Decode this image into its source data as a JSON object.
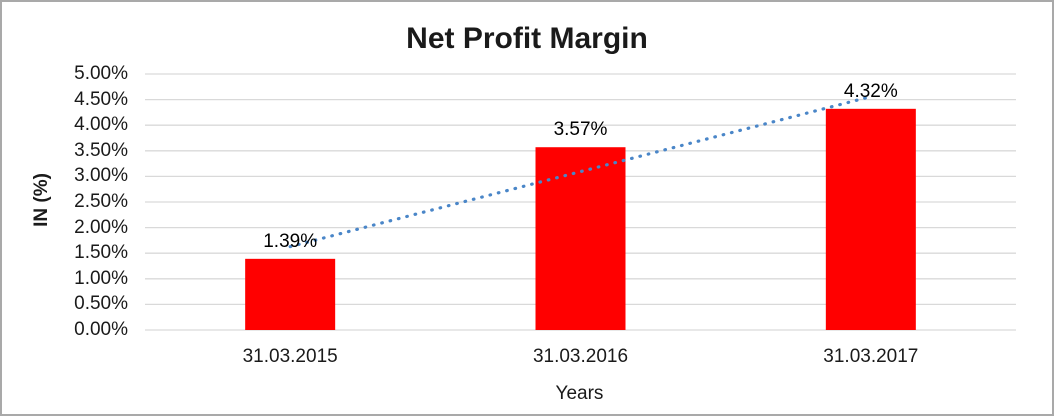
{
  "chart_data": {
    "type": "bar",
    "title": "Net Profit Margin",
    "categories": [
      "31.03.2015",
      "31.03.2016",
      "31.03.2017"
    ],
    "values": [
      1.39,
      3.57,
      4.32
    ],
    "data_labels": [
      "1.39%",
      "3.57%",
      "4.32%"
    ],
    "xlabel": "Years",
    "ylabel": "IN (%)",
    "ylim": [
      0,
      5
    ],
    "ytick_step": 0.5,
    "ytick_labels": [
      "0.00%",
      "0.50%",
      "1.00%",
      "1.50%",
      "2.00%",
      "2.50%",
      "3.00%",
      "3.50%",
      "4.00%",
      "4.50%",
      "5.00%"
    ],
    "grid": true,
    "legend": "none",
    "bar_color": "#ff0000",
    "trendline": {
      "type": "linear",
      "style": "dotted",
      "color": "#4a86c8"
    },
    "gridline_color": "#d9d9d9",
    "axis_text_color": "#1a1a1a"
  }
}
